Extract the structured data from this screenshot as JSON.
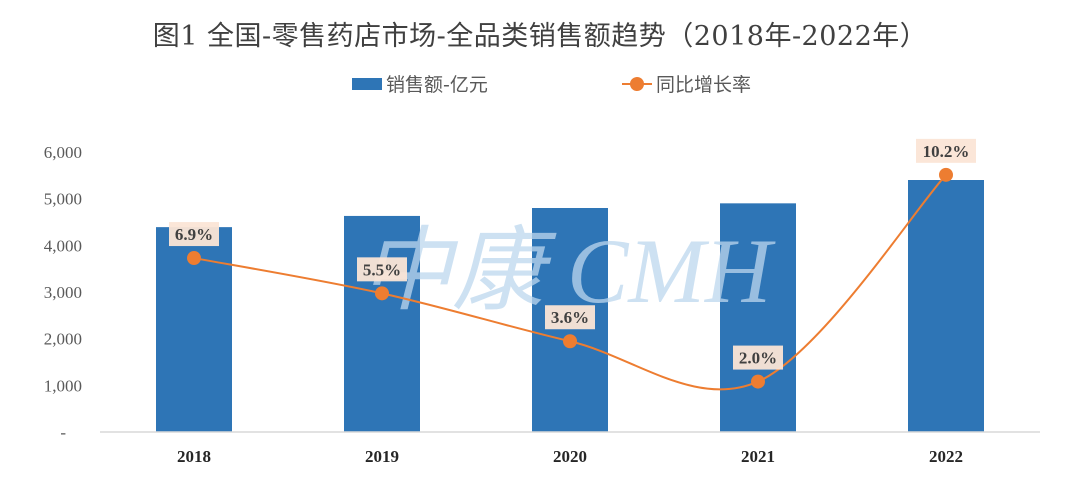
{
  "chart_data": {
    "type": "bar",
    "title": "图1 全国-零售药店市场-全品类销售额趋势（2018年-2022年）",
    "categories": [
      "2018",
      "2019",
      "2020",
      "2021",
      "2022"
    ],
    "series": [
      {
        "name": "销售额-亿元",
        "type": "bar",
        "axis": "left",
        "color": "#2e75b6",
        "values": [
          4390,
          4630,
          4800,
          4900,
          5400
        ]
      },
      {
        "name": "同比增长率",
        "type": "line",
        "axis": "right",
        "color": "#ed7d31",
        "values": [
          6.9,
          5.5,
          3.6,
          2.0,
          10.2
        ],
        "labels": [
          "6.9%",
          "5.5%",
          "3.6%",
          "2.0%",
          "10.2%"
        ],
        "smooth": true
      }
    ],
    "y_axis": {
      "ylim": [
        0,
        6000
      ],
      "ticks": [
        0,
        1000,
        2000,
        3000,
        4000,
        5000,
        6000
      ],
      "tick_labels": [
        "-",
        "1,000",
        "2,000",
        "3,000",
        "4,000",
        "5,000",
        "6,000"
      ]
    },
    "y2_axis": {
      "ylim": [
        0,
        11.9
      ],
      "visible": false
    },
    "xlabel": "",
    "ylabel": "",
    "grid": false,
    "legend": "top-center",
    "label_bg_color": "#fbe5d6",
    "watermark": "中康 CMH"
  }
}
